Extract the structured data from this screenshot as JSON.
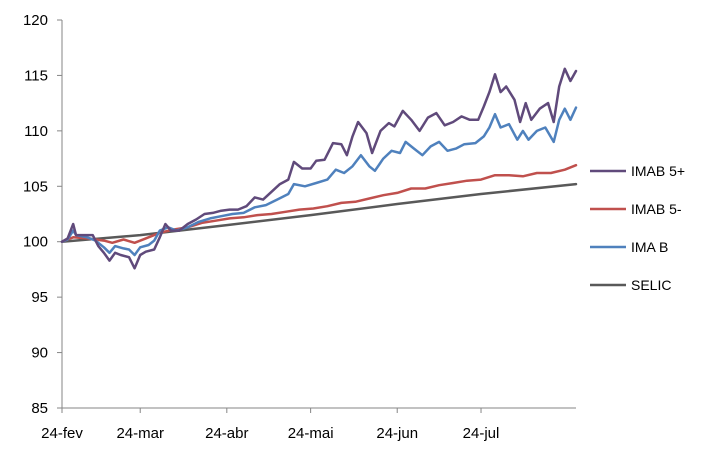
{
  "chart_data": {
    "type": "line",
    "title": "",
    "xlabel": "",
    "ylabel": "",
    "ylim": [
      85,
      120
    ],
    "yticks": [
      "85",
      "90",
      "95",
      "100",
      "105",
      "110",
      "115",
      "120"
    ],
    "xlim": [
      "24-fev",
      "end-aug"
    ],
    "xticks": [
      "24-fev",
      "24-mar",
      "24-abr",
      "24-mai",
      "24-jun",
      "24-jul"
    ],
    "grid": false,
    "legend_position": "right",
    "series": [
      {
        "name": "IMAB 5+",
        "color": "#604A7B",
        "points": [
          [
            "24-fev",
            100.0
          ],
          [
            "26-fev",
            100.3
          ],
          [
            "28-fev",
            101.6
          ],
          [
            "01-mar",
            100.6
          ],
          [
            "03-mar",
            100.6
          ],
          [
            "05-mar",
            100.6
          ],
          [
            "07-mar",
            100.6
          ],
          [
            "09-mar",
            99.6
          ],
          [
            "11-mar",
            99.0
          ],
          [
            "13-mar",
            98.3
          ],
          [
            "15-mar",
            99.0
          ],
          [
            "17-mar",
            98.8
          ],
          [
            "20-mar",
            98.6
          ],
          [
            "22-mar",
            97.6
          ],
          [
            "24-mar",
            98.8
          ],
          [
            "26-mar",
            99.1
          ],
          [
            "29-mar",
            99.3
          ],
          [
            "31-mar",
            100.4
          ],
          [
            "02-abr",
            101.6
          ],
          [
            "04-abr",
            101.0
          ],
          [
            "07-abr",
            101.0
          ],
          [
            "10-abr",
            101.6
          ],
          [
            "13-abr",
            102.0
          ],
          [
            "16-abr",
            102.5
          ],
          [
            "19-abr",
            102.6
          ],
          [
            "22-abr",
            102.8
          ],
          [
            "25-abr",
            102.9
          ],
          [
            "28-abr",
            102.9
          ],
          [
            "01-mai",
            103.2
          ],
          [
            "04-mai",
            104.0
          ],
          [
            "07-mai",
            103.8
          ],
          [
            "10-mai",
            104.5
          ],
          [
            "13-mai",
            105.2
          ],
          [
            "16-mai",
            105.6
          ],
          [
            "18-mai",
            107.2
          ],
          [
            "21-mai",
            106.6
          ],
          [
            "24-mai",
            106.6
          ],
          [
            "26-mai",
            107.3
          ],
          [
            "29-mai",
            107.4
          ],
          [
            "01-jun",
            108.9
          ],
          [
            "04-jun",
            108.8
          ],
          [
            "06-jun",
            107.8
          ],
          [
            "08-jun",
            109.5
          ],
          [
            "10-jun",
            110.8
          ],
          [
            "13-jun",
            109.8
          ],
          [
            "15-jun",
            108.0
          ],
          [
            "18-jun",
            110.0
          ],
          [
            "21-jun",
            110.7
          ],
          [
            "23-jun",
            110.4
          ],
          [
            "26-jun",
            111.8
          ],
          [
            "29-jun",
            111.0
          ],
          [
            "02-jul",
            110.0
          ],
          [
            "05-jul",
            111.2
          ],
          [
            "08-jul",
            111.6
          ],
          [
            "11-jul",
            110.5
          ],
          [
            "14-jul",
            110.8
          ],
          [
            "17-jul",
            111.3
          ],
          [
            "20-jul",
            111.0
          ],
          [
            "23-jul",
            111.0
          ],
          [
            "25-jul",
            112.2
          ],
          [
            "27-jul",
            113.5
          ],
          [
            "29-jul",
            115.1
          ],
          [
            "31-jul",
            113.5
          ],
          [
            "02-ago",
            114.0
          ],
          [
            "05-ago",
            112.8
          ],
          [
            "07-ago",
            110.8
          ],
          [
            "09-ago",
            112.5
          ],
          [
            "11-ago",
            111.0
          ],
          [
            "14-ago",
            112.0
          ],
          [
            "17-ago",
            112.5
          ],
          [
            "19-ago",
            110.8
          ],
          [
            "21-ago",
            114.0
          ],
          [
            "23-ago",
            115.6
          ],
          [
            "25-ago",
            114.5
          ],
          [
            "27-ago",
            115.4
          ]
        ]
      },
      {
        "name": "IMAB 5-",
        "color": "#C0504D",
        "points": [
          [
            "24-fev",
            100.0
          ],
          [
            "28-fev",
            100.4
          ],
          [
            "05-mar",
            100.3
          ],
          [
            "11-mar",
            100.1
          ],
          [
            "14-mar",
            99.9
          ],
          [
            "18-mar",
            100.2
          ],
          [
            "22-mar",
            99.9
          ],
          [
            "26-mar",
            100.3
          ],
          [
            "31-mar",
            100.8
          ],
          [
            "05-abr",
            101.1
          ],
          [
            "10-abr",
            101.3
          ],
          [
            "15-abr",
            101.7
          ],
          [
            "20-abr",
            101.9
          ],
          [
            "25-abr",
            102.1
          ],
          [
            "30-abr",
            102.2
          ],
          [
            "05-mai",
            102.4
          ],
          [
            "10-mai",
            102.5
          ],
          [
            "15-mai",
            102.7
          ],
          [
            "20-mai",
            102.9
          ],
          [
            "25-mai",
            103.0
          ],
          [
            "30-mai",
            103.2
          ],
          [
            "04-jun",
            103.5
          ],
          [
            "09-jun",
            103.6
          ],
          [
            "14-jun",
            103.9
          ],
          [
            "19-jun",
            104.2
          ],
          [
            "24-jun",
            104.4
          ],
          [
            "29-jun",
            104.8
          ],
          [
            "04-jul",
            104.8
          ],
          [
            "09-jul",
            105.1
          ],
          [
            "14-jul",
            105.3
          ],
          [
            "19-jul",
            105.5
          ],
          [
            "24-jul",
            105.6
          ],
          [
            "29-jul",
            106.0
          ],
          [
            "03-ago",
            106.0
          ],
          [
            "08-ago",
            105.9
          ],
          [
            "13-ago",
            106.2
          ],
          [
            "18-ago",
            106.2
          ],
          [
            "23-ago",
            106.5
          ],
          [
            "27-ago",
            106.9
          ]
        ]
      },
      {
        "name": "IMA B",
        "color": "#4F81BD",
        "points": [
          [
            "24-fev",
            100.0
          ],
          [
            "26-fev",
            100.2
          ],
          [
            "28-fev",
            101.0
          ],
          [
            "01-mar",
            100.6
          ],
          [
            "05-mar",
            100.4
          ],
          [
            "08-mar",
            100.1
          ],
          [
            "11-mar",
            99.5
          ],
          [
            "13-mar",
            99.0
          ],
          [
            "15-mar",
            99.6
          ],
          [
            "18-mar",
            99.4
          ],
          [
            "20-mar",
            99.3
          ],
          [
            "22-mar",
            98.8
          ],
          [
            "24-mar",
            99.5
          ],
          [
            "27-mar",
            99.7
          ],
          [
            "29-mar",
            100.1
          ],
          [
            "31-mar",
            101.0
          ],
          [
            "03-abr",
            101.3
          ],
          [
            "06-abr",
            101.0
          ],
          [
            "10-abr",
            101.3
          ],
          [
            "14-abr",
            101.8
          ],
          [
            "18-abr",
            102.1
          ],
          [
            "22-abr",
            102.3
          ],
          [
            "26-abr",
            102.5
          ],
          [
            "30-abr",
            102.6
          ],
          [
            "04-mai",
            103.1
          ],
          [
            "08-mai",
            103.3
          ],
          [
            "12-mai",
            103.8
          ],
          [
            "16-mai",
            104.3
          ],
          [
            "18-mai",
            105.2
          ],
          [
            "22-mai",
            105.0
          ],
          [
            "26-mai",
            105.3
          ],
          [
            "30-mai",
            105.6
          ],
          [
            "02-jun",
            106.5
          ],
          [
            "05-jun",
            106.2
          ],
          [
            "08-jun",
            106.8
          ],
          [
            "11-jun",
            107.8
          ],
          [
            "14-jun",
            106.8
          ],
          [
            "16-jun",
            106.4
          ],
          [
            "19-jun",
            107.5
          ],
          [
            "22-jun",
            108.2
          ],
          [
            "25-jun",
            108.0
          ],
          [
            "27-jun",
            109.0
          ],
          [
            "30-jun",
            108.4
          ],
          [
            "03-jul",
            107.8
          ],
          [
            "06-jul",
            108.6
          ],
          [
            "09-jul",
            109.0
          ],
          [
            "12-jul",
            108.2
          ],
          [
            "15-jul",
            108.4
          ],
          [
            "18-jul",
            108.8
          ],
          [
            "22-jul",
            108.9
          ],
          [
            "25-jul",
            109.5
          ],
          [
            "27-jul",
            110.3
          ],
          [
            "29-jul",
            111.5
          ],
          [
            "31-jul",
            110.3
          ],
          [
            "03-ago",
            110.6
          ],
          [
            "06-ago",
            109.2
          ],
          [
            "08-ago",
            110.0
          ],
          [
            "10-ago",
            109.2
          ],
          [
            "13-ago",
            110.0
          ],
          [
            "16-ago",
            110.3
          ],
          [
            "19-ago",
            109.0
          ],
          [
            "21-ago",
            111.0
          ],
          [
            "23-ago",
            112.0
          ],
          [
            "25-ago",
            111.0
          ],
          [
            "27-ago",
            112.1
          ]
        ]
      },
      {
        "name": "SELIC",
        "color": "#595959",
        "points": [
          [
            "24-fev",
            100.0
          ],
          [
            "24-mar",
            100.6
          ],
          [
            "24-abr",
            101.5
          ],
          [
            "24-mai",
            102.4
          ],
          [
            "24-jun",
            103.4
          ],
          [
            "24-jul",
            104.3
          ],
          [
            "27-ago",
            105.2
          ]
        ]
      }
    ]
  }
}
